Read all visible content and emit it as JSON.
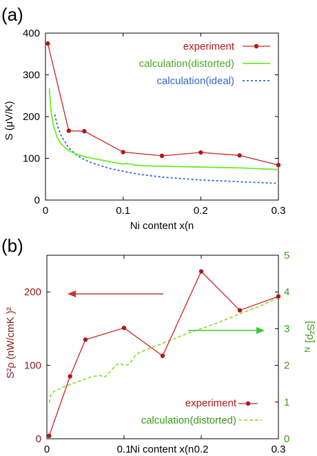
{
  "colors": {
    "experiment": "#cc2222",
    "experiment_marker": "#b01818",
    "calc_distorted_a": "#66ee22",
    "calc_distorted_b": "#88dd22",
    "calc_ideal": "#3366dd",
    "ylabel_b": "#8b1a1a",
    "y2label_b": "#3a9a1a",
    "arrow_left": "#c0392b",
    "arrow_right": "#33cc33"
  },
  "chart_data": [
    {
      "type": "line",
      "panel_label": "(a)",
      "xlabel": "Ni content x(n",
      "ylabel": "S (μV/K)",
      "xlim": [
        0,
        0.3
      ],
      "ylim": [
        0,
        400
      ],
      "xticks": [
        0,
        0.1,
        0.2,
        0.3
      ],
      "xtick_labels": [
        "0",
        "0.1",
        "0.2",
        "0.3"
      ],
      "yticks": [
        0,
        100,
        200,
        300,
        400
      ],
      "ytick_labels": [
        "0",
        "100",
        "200",
        "300",
        "400"
      ],
      "legend_position": "top-right",
      "series": [
        {
          "name": "experiment",
          "style": "line-marker",
          "x": [
            0.003,
            0.03,
            0.05,
            0.1,
            0.15,
            0.2,
            0.25,
            0.3
          ],
          "y": [
            375,
            166,
            165,
            115,
            106,
            114,
            107,
            84
          ]
        },
        {
          "name": "calculation(distorted)",
          "style": "solid",
          "x": [
            0.005,
            0.007,
            0.01,
            0.015,
            0.02,
            0.03,
            0.04,
            0.05,
            0.06,
            0.08,
            0.1,
            0.105,
            0.11,
            0.115,
            0.13,
            0.15,
            0.2,
            0.25,
            0.3
          ],
          "y": [
            268,
            215,
            180,
            150,
            135,
            118,
            110,
            104,
            100,
            93,
            86,
            88,
            86,
            84,
            82,
            81,
            79,
            77,
            73
          ]
        },
        {
          "name": "calculation(ideal)",
          "style": "dashed",
          "x": [
            0.012,
            0.015,
            0.02,
            0.03,
            0.04,
            0.05,
            0.06,
            0.08,
            0.1,
            0.12,
            0.15,
            0.2,
            0.25,
            0.3
          ],
          "y": [
            205,
            180,
            155,
            125,
            108,
            97,
            89,
            77,
            69,
            62,
            55,
            48,
            44,
            40
          ]
        }
      ]
    },
    {
      "type": "line",
      "panel_label": "(b)",
      "xlabel": "Ni content x(n",
      "ylabel": "S²ρ (nW/cmK )²",
      "y2label": "[S²ρ]",
      "y2label_sub": "N",
      "xlim": [
        0,
        0.3
      ],
      "ylim": [
        0,
        250
      ],
      "y2lim": [
        0,
        5
      ],
      "xticks": [
        0,
        0.1,
        0.2,
        0.3
      ],
      "xtick_labels": [
        "0",
        "0.1",
        "0.2",
        "0.3"
      ],
      "yticks": [
        0,
        100,
        200
      ],
      "ytick_labels": [
        "0",
        "100",
        "200"
      ],
      "y2ticks": [
        0,
        1,
        2,
        3,
        4,
        5
      ],
      "y2tick_labels": [
        "0",
        "1",
        "2",
        "3",
        "4",
        "5"
      ],
      "legend_position": "bottom-right",
      "series": [
        {
          "name": "experiment",
          "axis": "left",
          "style": "line-marker",
          "x": [
            0.003,
            0.03,
            0.05,
            0.1,
            0.15,
            0.2,
            0.25,
            0.3
          ],
          "y": [
            4,
            85,
            135,
            151,
            113,
            228,
            175,
            194
          ]
        },
        {
          "name": "calculation(distorted)",
          "axis": "right",
          "style": "dashed",
          "x": [
            0.003,
            0.005,
            0.01,
            0.02,
            0.03,
            0.04,
            0.05,
            0.06,
            0.07,
            0.075,
            0.08,
            0.09,
            0.095,
            0.1,
            0.105,
            0.11,
            0.115,
            0.12,
            0.15,
            0.18,
            0.2,
            0.22,
            0.25,
            0.28,
            0.3
          ],
          "y": [
            0.98,
            1.2,
            1.3,
            1.4,
            1.48,
            1.55,
            1.63,
            1.7,
            1.72,
            1.68,
            1.78,
            2.02,
            2.05,
            2.0,
            2.02,
            2.12,
            2.28,
            2.35,
            2.6,
            2.85,
            3.0,
            3.15,
            3.4,
            3.65,
            3.85
          ]
        }
      ]
    }
  ]
}
